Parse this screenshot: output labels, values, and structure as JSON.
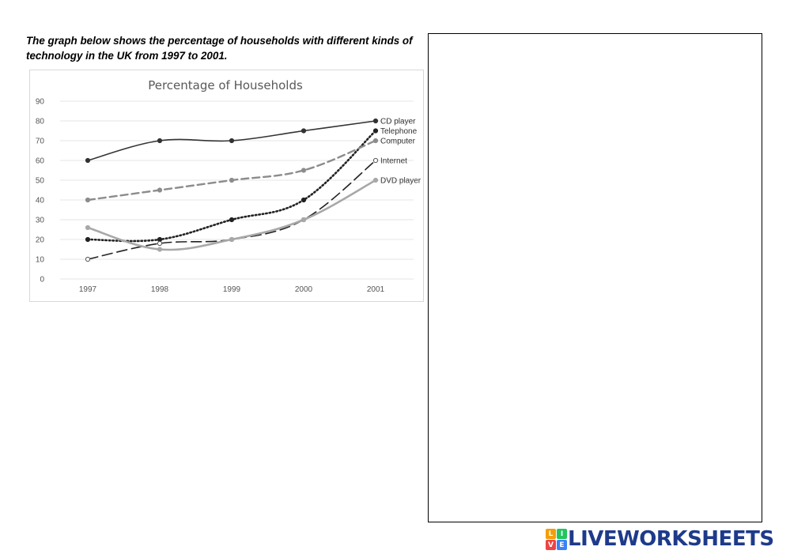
{
  "prompt": "The graph below shows the percentage of households with different kinds of technology in the UK from 1997 to 2001.",
  "brand": {
    "name": "LIVEWORKSHEETS",
    "badge_letters": [
      "L",
      "I",
      "V",
      "E"
    ],
    "badge_colors": [
      "#f59e0b",
      "#22c55e",
      "#ef4444",
      "#3b82f6"
    ],
    "text_color": "#1e3a8a"
  },
  "chart_data": {
    "type": "line",
    "title": "Percentage of Households",
    "xlabel": "",
    "ylabel": "",
    "categories": [
      "1997",
      "1998",
      "1999",
      "2000",
      "2001"
    ],
    "ylim": [
      0,
      90
    ],
    "yticks": [
      0,
      10,
      20,
      30,
      40,
      50,
      60,
      70,
      80,
      90
    ],
    "grid": true,
    "legend": "end-of-line labels",
    "series": [
      {
        "name": "CD player",
        "values": [
          60,
          70,
          70,
          75,
          80
        ],
        "color": "#333333",
        "style": "solid",
        "marker": "filled"
      },
      {
        "name": "Telephone",
        "values": [
          20,
          20,
          30,
          40,
          75
        ],
        "color": "#222222",
        "style": "dotted",
        "marker": "filled"
      },
      {
        "name": "Computer",
        "values": [
          40,
          45,
          50,
          55,
          70
        ],
        "color": "#8c8c8c",
        "style": "dashed",
        "marker": "filled"
      },
      {
        "name": "Internet",
        "values": [
          10,
          18,
          20,
          30,
          60
        ],
        "color": "#222222",
        "style": "longdash",
        "marker": "hollow"
      },
      {
        "name": "DVD player",
        "values": [
          26,
          15,
          20,
          30,
          50
        ],
        "color": "#a8a8a8",
        "style": "solid",
        "marker": "filled"
      }
    ]
  }
}
